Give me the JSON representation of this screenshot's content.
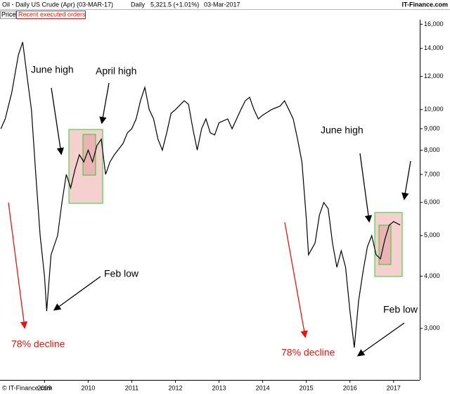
{
  "chart_data": {
    "type": "line",
    "title": "Oil - Daily US Crude (Apr) (03-MAR-17)",
    "period": "Daily",
    "last": "5,321.5 (+1.01%)",
    "date": "03-Mar-2017",
    "source": "IT-Finance.com",
    "tabs": [
      "Price",
      "Recent executed orders"
    ],
    "copyright": "© IT-Finance.com",
    "annotations": [
      "June high",
      "April high",
      "Feb low",
      "78% decline",
      "June high",
      "78% decline",
      "Feb low"
    ],
    "color": "#000000",
    "log_scale": true,
    "x": [
      2008.0,
      2008.1,
      2008.25,
      2008.4,
      2008.5,
      2008.6,
      2008.7,
      2008.8,
      2008.9,
      2009.0,
      2009.05,
      2009.15,
      2009.3,
      2009.4,
      2009.5,
      2009.6,
      2009.7,
      2009.8,
      2009.9,
      2010.0,
      2010.1,
      2010.2,
      2010.3,
      2010.4,
      2010.5,
      2010.6,
      2010.8,
      2010.9,
      2011.0,
      2011.1,
      2011.2,
      2011.3,
      2011.4,
      2011.5,
      2011.6,
      2011.7,
      2011.8,
      2011.9,
      2012.0,
      2012.2,
      2012.3,
      2012.4,
      2012.5,
      2012.6,
      2012.7,
      2012.8,
      2012.9,
      2013.0,
      2013.2,
      2013.3,
      2013.5,
      2013.6,
      2013.7,
      2013.8,
      2013.9,
      2014.0,
      2014.2,
      2014.4,
      2014.5,
      2014.6,
      2014.7,
      2014.8,
      2014.9,
      2015.0,
      2015.05,
      2015.2,
      2015.3,
      2015.4,
      2015.5,
      2015.6,
      2015.7,
      2015.8,
      2015.9,
      2016.0,
      2016.1,
      2016.2,
      2016.3,
      2016.4,
      2016.5,
      2016.6,
      2016.7,
      2016.8,
      2016.9,
      2017.0,
      2017.15
    ],
    "values": [
      9000,
      9500,
      11000,
      13500,
      14500,
      12000,
      10000,
      7000,
      5000,
      4000,
      3300,
      4500,
      5000,
      6000,
      7000,
      6500,
      7200,
      7800,
      7500,
      8000,
      7500,
      8200,
      8500,
      7000,
      7500,
      7800,
      8300,
      8800,
      9000,
      9500,
      10500,
      11300,
      10000,
      9500,
      8500,
      8000,
      8800,
      9800,
      10000,
      10500,
      10300,
      9000,
      8000,
      9000,
      9500,
      8800,
      8700,
      9300,
      9500,
      9000,
      10000,
      10500,
      10700,
      10000,
      9500,
      9700,
      10000,
      10200,
      10500,
      10000,
      9500,
      8500,
      7500,
      5500,
      4500,
      4800,
      5600,
      6000,
      5800,
      4800,
      4200,
      4600,
      4200,
      3300,
      2700,
      3500,
      4100,
      4700,
      5000,
      4500,
      4400,
      4900,
      5300,
      5400,
      5300
    ],
    "xlim": [
      2007.98,
      2017.6
    ],
    "xticks": [
      2009,
      2010,
      2011,
      2012,
      2013,
      2014,
      2015,
      2016,
      2017
    ],
    "ylim": [
      2260,
      16400
    ],
    "yticks": [
      {
        "value": 3000,
        "label": "3,000"
      },
      {
        "value": 4000,
        "label": "4,000"
      },
      {
        "value": 5000,
        "label": "5,000"
      },
      {
        "value": 6000,
        "label": "6,000"
      },
      {
        "value": 7000,
        "label": "7,000"
      },
      {
        "value": 8000,
        "label": "8,000"
      },
      {
        "value": 9000,
        "label": "9,000"
      },
      {
        "value": 10000,
        "label": "10,000"
      },
      {
        "value": 12000,
        "label": "12,000"
      },
      {
        "value": 14000,
        "label": "14,000"
      },
      {
        "value": 16000,
        "label": "16,000"
      }
    ]
  }
}
